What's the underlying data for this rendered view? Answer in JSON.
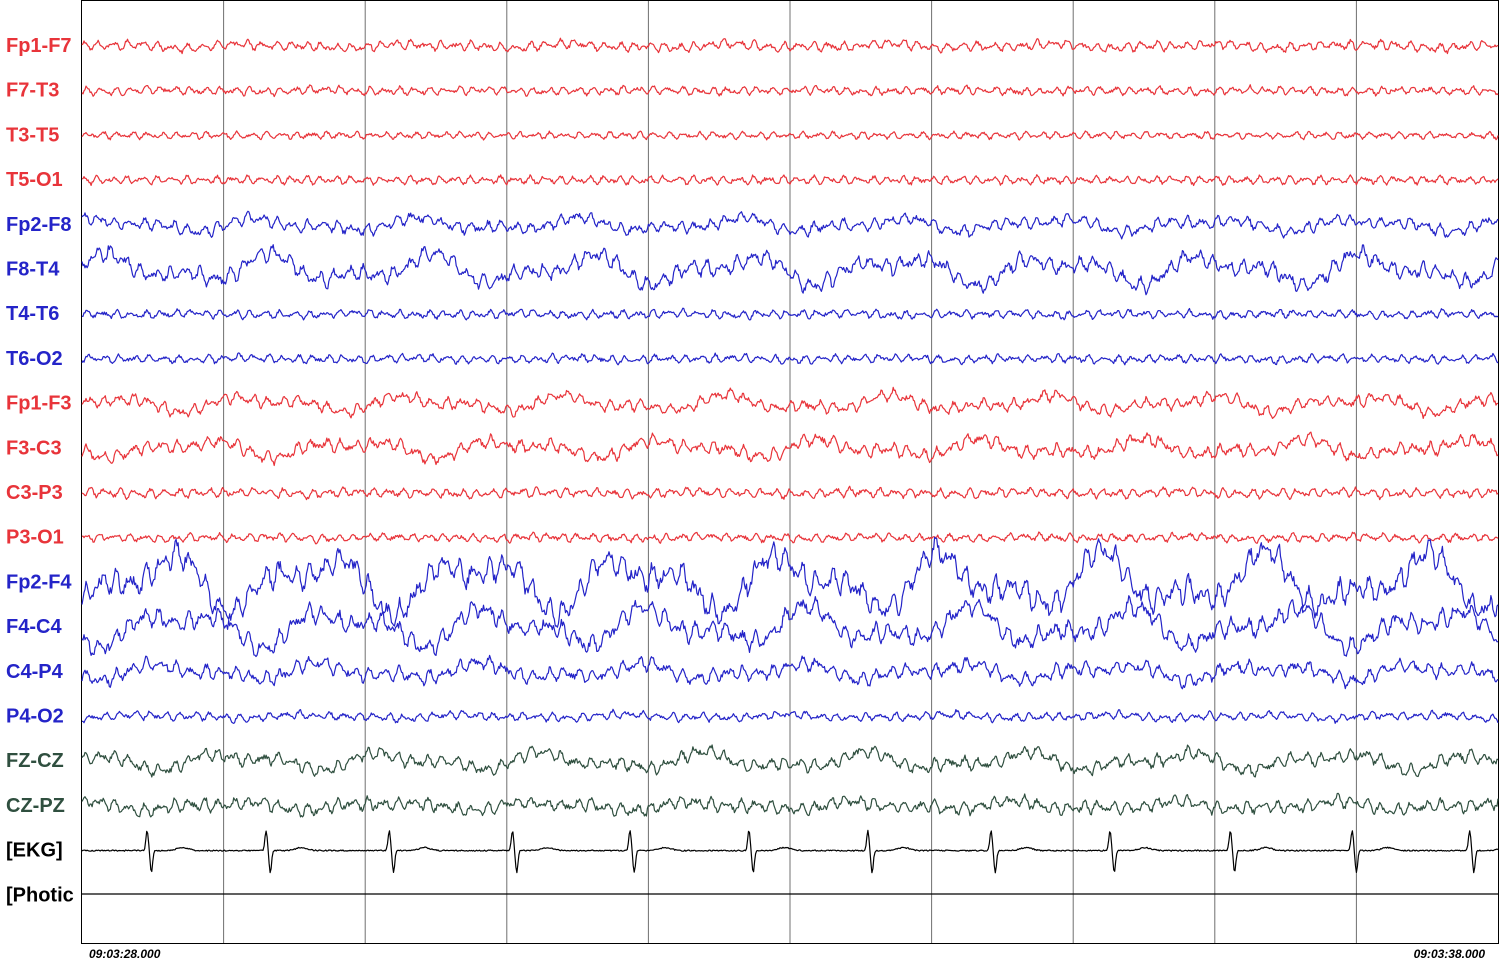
{
  "colors": {
    "left": "#e8343a",
    "right": "#2424c8",
    "midline": "#2f4f3f",
    "ekg": "#000000",
    "grid": "#707070",
    "border": "#000000"
  },
  "chart_data": {
    "type": "eeg-trace",
    "time_start": "09:03:28.000",
    "time_end": "09:03:38.000",
    "duration_s": 10,
    "vertical_gridlines": 10,
    "channels": [
      {
        "label": "Fp1-F7",
        "color_key": "left",
        "kind": "eeg",
        "amp": 8,
        "slow": 0.2
      },
      {
        "label": "F7-T3",
        "color_key": "left",
        "kind": "eeg",
        "amp": 7,
        "slow": 0.1
      },
      {
        "label": "T3-T5",
        "color_key": "left",
        "kind": "eeg",
        "amp": 6,
        "slow": 0.0
      },
      {
        "label": "T5-O1",
        "color_key": "left",
        "kind": "eeg",
        "amp": 7,
        "slow": 0.0
      },
      {
        "label": "Fp2-F8",
        "color_key": "right",
        "kind": "eeg",
        "amp": 10,
        "slow": 0.5
      },
      {
        "label": "F8-T4",
        "color_key": "right",
        "kind": "eeg",
        "amp": 14,
        "slow": 0.8
      },
      {
        "label": "T4-T6",
        "color_key": "right",
        "kind": "eeg",
        "amp": 7,
        "slow": 0.1
      },
      {
        "label": "T6-O2",
        "color_key": "right",
        "kind": "eeg",
        "amp": 7,
        "slow": 0.1
      },
      {
        "label": "Fp1-F3",
        "color_key": "left",
        "kind": "eeg",
        "amp": 10,
        "slow": 0.6
      },
      {
        "label": "F3-C3",
        "color_key": "left",
        "kind": "eeg",
        "amp": 11,
        "slow": 0.6
      },
      {
        "label": "C3-P3",
        "color_key": "left",
        "kind": "eeg",
        "amp": 8,
        "slow": 0.1
      },
      {
        "label": "P3-O1",
        "color_key": "left",
        "kind": "eeg",
        "amp": 7,
        "slow": 0.1
      },
      {
        "label": "Fp2-F4",
        "color_key": "right",
        "kind": "eeg",
        "amp": 22,
        "slow": 1.0
      },
      {
        "label": "F4-C4",
        "color_key": "right",
        "kind": "eeg",
        "amp": 16,
        "slow": 0.9
      },
      {
        "label": "C4-P4",
        "color_key": "right",
        "kind": "eeg",
        "amp": 12,
        "slow": 0.5
      },
      {
        "label": "P4-O2",
        "color_key": "right",
        "kind": "eeg",
        "amp": 7,
        "slow": 0.2
      },
      {
        "label": "FZ-CZ",
        "color_key": "midline",
        "kind": "eeg",
        "amp": 11,
        "slow": 0.6
      },
      {
        "label": "CZ-PZ",
        "color_key": "midline",
        "kind": "eeg",
        "amp": 11,
        "slow": 0.3
      },
      {
        "label": "[EKG]",
        "color_key": "ekg",
        "kind": "ekg",
        "amp": 22,
        "slow": 0.0
      },
      {
        "label": "[Photic",
        "color_key": "ekg",
        "kind": "flat",
        "amp": 0,
        "slow": 0.0
      }
    ],
    "ekg_beats_s": [
      0.46,
      1.3,
      2.17,
      3.04,
      3.87,
      4.71,
      5.55,
      6.42,
      7.26,
      8.11,
      8.97,
      9.8
    ]
  }
}
